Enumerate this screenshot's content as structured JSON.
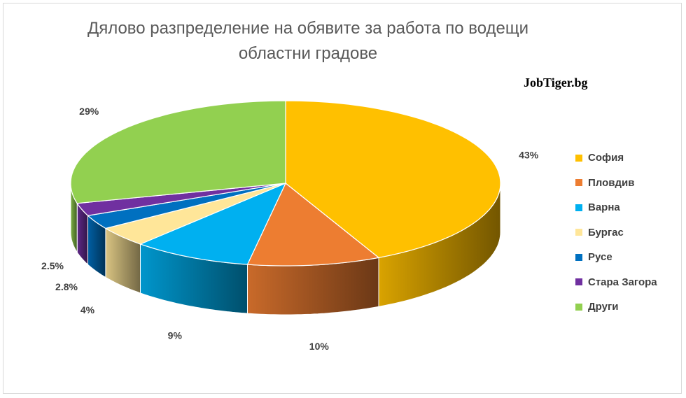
{
  "chart_data": {
    "type": "pie",
    "title": "Дялово разпределение на обявите за работа по водещи областни градове",
    "title_lines": [
      "Дялово разпределение на обявите за работа по водещи",
      "областни градове"
    ],
    "watermark": "JobTiger.bg",
    "legend_position": "right",
    "slices": [
      {
        "name": "София",
        "value": 43,
        "label": "43%",
        "color": "#FFC000"
      },
      {
        "name": "Пловдив",
        "value": 10,
        "label": "10%",
        "color": "#ED7D31"
      },
      {
        "name": "Варна",
        "value": 9,
        "label": "9%",
        "color": "#00B0F0"
      },
      {
        "name": "Бургас",
        "value": 4,
        "label": "4%",
        "color": "#FFE699"
      },
      {
        "name": "Русе",
        "value": 2.8,
        "label": "2.8%",
        "color": "#0070C0"
      },
      {
        "name": "Стара Загора",
        "value": 2.5,
        "label": "2.5%",
        "color": "#7030A0"
      },
      {
        "name": "Други",
        "value": 29,
        "label": "29%",
        "color": "#92D050"
      }
    ]
  }
}
